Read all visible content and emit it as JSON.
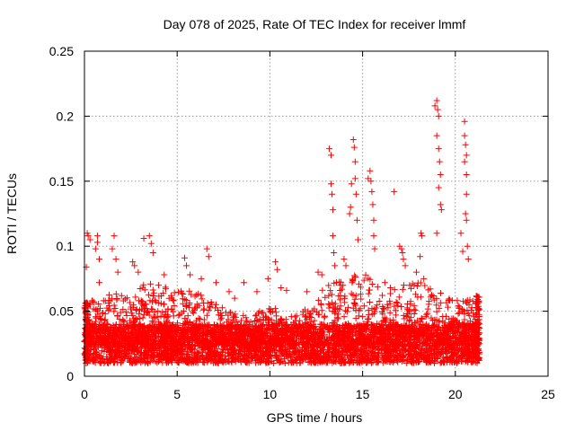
{
  "chart_data": {
    "type": "scatter",
    "title": "Day 078 of 2025, Rate Of TEC Index for receiver lmmf",
    "xlabel": "GPS time / hours",
    "ylabel": "ROTI / TECUs",
    "xlim": [
      0,
      25
    ],
    "ylim": [
      0,
      0.25
    ],
    "xticks": [
      0,
      5,
      10,
      15,
      20,
      25
    ],
    "yticks": [
      0,
      0.05,
      0.1,
      0.15,
      0.2,
      0.25
    ],
    "xtick_labels": [
      "0",
      "5",
      "10",
      "15",
      "20",
      "25"
    ],
    "ytick_labels": [
      "0",
      "0.05",
      "0.1",
      "0.15",
      "0.2",
      "0.25"
    ],
    "grid": true,
    "marker": "plus",
    "series_color": "#ff0000",
    "data_extent_hours": [
      0,
      21.3
    ],
    "baseline_range": [
      0.01,
      0.04
    ],
    "series": [
      {
        "name": "ROTI",
        "points": [
          [
            0.1,
            0.084
          ],
          [
            0.15,
            0.11
          ],
          [
            0.2,
            0.108
          ],
          [
            0.3,
            0.105
          ],
          [
            0.6,
            0.098
          ],
          [
            0.7,
            0.103
          ],
          [
            0.7,
            0.108
          ],
          [
            0.8,
            0.09
          ],
          [
            0.8,
            0.072
          ],
          [
            1.5,
            0.098
          ],
          [
            1.6,
            0.108
          ],
          [
            1.7,
            0.09
          ],
          [
            1.8,
            0.08
          ],
          [
            2.0,
            0.062
          ],
          [
            2.1,
            0.058
          ],
          [
            2.6,
            0.088
          ],
          [
            2.7,
            0.085
          ],
          [
            2.9,
            0.08
          ],
          [
            3.2,
            0.106
          ],
          [
            3.5,
            0.108
          ],
          [
            3.6,
            0.102
          ],
          [
            3.7,
            0.095
          ],
          [
            4.0,
            0.07
          ],
          [
            4.3,
            0.078
          ],
          [
            5.4,
            0.091
          ],
          [
            5.5,
            0.085
          ],
          [
            5.7,
            0.078
          ],
          [
            6.3,
            0.075
          ],
          [
            6.6,
            0.098
          ],
          [
            6.7,
            0.092
          ],
          [
            7.1,
            0.072
          ],
          [
            7.8,
            0.065
          ],
          [
            8.1,
            0.06
          ],
          [
            8.6,
            0.072
          ],
          [
            9.3,
            0.065
          ],
          [
            9.9,
            0.075
          ],
          [
            10.3,
            0.088
          ],
          [
            10.4,
            0.082
          ],
          [
            10.6,
            0.068
          ],
          [
            10.9,
            0.066
          ],
          [
            12.0,
            0.065
          ],
          [
            12.6,
            0.08
          ],
          [
            12.8,
            0.078
          ],
          [
            13.2,
            0.175
          ],
          [
            13.3,
            0.17
          ],
          [
            13.3,
            0.148
          ],
          [
            13.35,
            0.14
          ],
          [
            13.4,
            0.128
          ],
          [
            13.4,
            0.108
          ],
          [
            13.45,
            0.095
          ],
          [
            13.5,
            0.085
          ],
          [
            14.0,
            0.09
          ],
          [
            14.1,
            0.085
          ],
          [
            14.3,
            0.125
          ],
          [
            14.35,
            0.13
          ],
          [
            14.4,
            0.148
          ],
          [
            14.5,
            0.182
          ],
          [
            14.55,
            0.176
          ],
          [
            14.6,
            0.165
          ],
          [
            14.6,
            0.152
          ],
          [
            14.65,
            0.14
          ],
          [
            14.7,
            0.12
          ],
          [
            14.75,
            0.105
          ],
          [
            15.3,
            0.152
          ],
          [
            15.4,
            0.158
          ],
          [
            15.45,
            0.15
          ],
          [
            15.5,
            0.142
          ],
          [
            15.55,
            0.132
          ],
          [
            15.6,
            0.12
          ],
          [
            15.6,
            0.108
          ],
          [
            15.65,
            0.098
          ],
          [
            16.2,
            0.072
          ],
          [
            16.5,
            0.068
          ],
          [
            16.7,
            0.142
          ],
          [
            17.0,
            0.1
          ],
          [
            17.1,
            0.098
          ],
          [
            17.15,
            0.095
          ],
          [
            17.2,
            0.09
          ],
          [
            17.3,
            0.085
          ],
          [
            17.9,
            0.08
          ],
          [
            18.1,
            0.092
          ],
          [
            18.15,
            0.11
          ],
          [
            18.2,
            0.108
          ],
          [
            18.3,
            0.075
          ],
          [
            18.9,
            0.208
          ],
          [
            19.0,
            0.212
          ],
          [
            19.05,
            0.205
          ],
          [
            19.1,
            0.2
          ],
          [
            19.0,
            0.185
          ],
          [
            19.1,
            0.175
          ],
          [
            19.15,
            0.165
          ],
          [
            19.2,
            0.155
          ],
          [
            19.1,
            0.145
          ],
          [
            19.2,
            0.132
          ],
          [
            19.25,
            0.128
          ],
          [
            19.0,
            0.11
          ],
          [
            20.3,
            0.11
          ],
          [
            20.4,
            0.096
          ],
          [
            20.5,
            0.196
          ],
          [
            20.5,
            0.185
          ],
          [
            20.55,
            0.178
          ],
          [
            20.6,
            0.17
          ],
          [
            20.5,
            0.165
          ],
          [
            20.6,
            0.155
          ],
          [
            20.6,
            0.14
          ],
          [
            20.55,
            0.125
          ],
          [
            20.6,
            0.12
          ],
          [
            20.65,
            0.1
          ],
          [
            20.7,
            0.09
          ]
        ]
      }
    ],
    "density_envelope": {
      "x": [
        0,
        0.5,
        1,
        1.5,
        2,
        2.5,
        3,
        3.5,
        4,
        4.5,
        5,
        5.5,
        6,
        6.5,
        7,
        7.5,
        8,
        8.5,
        9,
        9.5,
        10,
        10.5,
        11,
        11.5,
        12,
        12.5,
        13,
        13.5,
        14,
        14.5,
        15,
        15.5,
        16,
        16.5,
        17,
        17.5,
        18,
        18.5,
        19,
        19.5,
        20,
        20.5,
        21,
        21.3
      ],
      "upper": [
        0.055,
        0.06,
        0.058,
        0.065,
        0.062,
        0.06,
        0.07,
        0.072,
        0.068,
        0.07,
        0.065,
        0.068,
        0.065,
        0.062,
        0.058,
        0.052,
        0.05,
        0.048,
        0.05,
        0.05,
        0.055,
        0.05,
        0.048,
        0.05,
        0.052,
        0.06,
        0.07,
        0.075,
        0.072,
        0.078,
        0.08,
        0.075,
        0.065,
        0.068,
        0.072,
        0.07,
        0.075,
        0.07,
        0.068,
        0.062,
        0.06,
        0.06,
        0.058,
        0.055
      ]
    }
  }
}
